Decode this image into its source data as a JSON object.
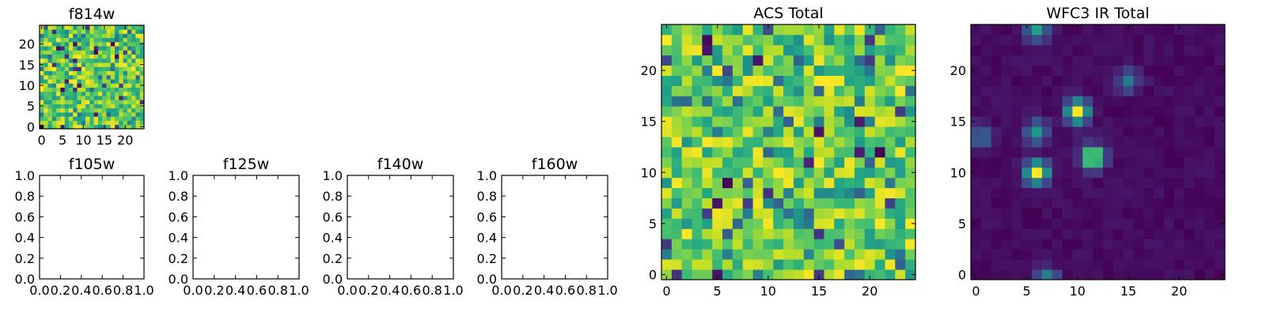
{
  "figure": {
    "panels": [
      {
        "id": "f814w",
        "title": "f814w",
        "type": "heatmap",
        "grid": [
          25,
          25
        ],
        "xticks": [
          "0",
          "5",
          "10",
          "15",
          "20"
        ],
        "yticks": [
          "0",
          "5",
          "10",
          "15",
          "20"
        ],
        "colormap": "viridis",
        "note_values": "random-looking noise field; most pixels mid-to-high (green/yellow) with scattered low (purple) pixels"
      },
      {
        "id": "f105w",
        "title": "f105w",
        "type": "empty",
        "xticks": [
          "0.0",
          "0.2",
          "0.4",
          "0.6",
          "0.8",
          "1.0"
        ],
        "yticks": [
          "0.0",
          "0.2",
          "0.4",
          "0.6",
          "0.8",
          "1.0"
        ]
      },
      {
        "id": "f125w",
        "title": "f125w",
        "type": "empty",
        "xticks": [
          "0.0",
          "0.2",
          "0.4",
          "0.6",
          "0.8",
          "1.0"
        ],
        "yticks": [
          "0.0",
          "0.2",
          "0.4",
          "0.6",
          "0.8",
          "1.0"
        ]
      },
      {
        "id": "f140w",
        "title": "f140w",
        "type": "empty",
        "xticks": [
          "0.0",
          "0.2",
          "0.4",
          "0.6",
          "0.8",
          "1.0"
        ],
        "yticks": [
          "0.0",
          "0.2",
          "0.4",
          "0.6",
          "0.8",
          "1.0"
        ]
      },
      {
        "id": "f160w",
        "title": "f160w",
        "type": "empty",
        "xticks": [
          "0.0",
          "0.2",
          "0.4",
          "0.6",
          "0.8",
          "1.0"
        ],
        "yticks": [
          "0.0",
          "0.2",
          "0.4",
          "0.6",
          "0.8",
          "1.0"
        ]
      },
      {
        "id": "acs-total",
        "title": "ACS Total",
        "type": "heatmap",
        "grid": [
          25,
          25
        ],
        "xticks": [
          "0",
          "5",
          "10",
          "15",
          "20"
        ],
        "yticks": [
          "0",
          "5",
          "10",
          "15",
          "20"
        ],
        "colormap": "viridis"
      },
      {
        "id": "wfc3-ir-total",
        "title": "WFC3 IR Total",
        "type": "heatmap",
        "grid": [
          25,
          25
        ],
        "xticks": [
          "0",
          "5",
          "10",
          "15",
          "20"
        ],
        "yticks": [
          "0",
          "5",
          "10",
          "15",
          "20"
        ],
        "colormap": "viridis",
        "sources": [
          {
            "x": 6.5,
            "y": 24.5,
            "peak": 0.55
          },
          {
            "x": 10.5,
            "y": 16.5,
            "peak": 1.0
          },
          {
            "x": 15.5,
            "y": 19.5,
            "peak": 0.35
          },
          {
            "x": 6.5,
            "y": 10.5,
            "peak": 1.0
          },
          {
            "x": 6.5,
            "y": 14.5,
            "peak": 0.5
          },
          {
            "x": 12.0,
            "y": 12.0,
            "peak": 0.95
          },
          {
            "x": 1.0,
            "y": 14.0,
            "peak": 0.35
          },
          {
            "x": 7.5,
            "y": 0.0,
            "peak": 0.5
          }
        ]
      }
    ]
  },
  "chart_data": [
    {
      "type": "heatmap",
      "title": "f814w",
      "x_range": [
        -0.5,
        24.5
      ],
      "y_range": [
        -0.5,
        24.5
      ],
      "grid": [
        25,
        25
      ],
      "colormap": "viridis",
      "xticks": [
        0,
        5,
        10,
        15,
        20
      ],
      "yticks": [
        0,
        5,
        10,
        15,
        20
      ]
    },
    {
      "type": "heatmap",
      "title": "f105w",
      "x_range": [
        0.0,
        1.0
      ],
      "y_range": [
        0.0,
        1.0
      ],
      "values": []
    },
    {
      "type": "heatmap",
      "title": "f125w",
      "x_range": [
        0.0,
        1.0
      ],
      "y_range": [
        0.0,
        1.0
      ],
      "values": []
    },
    {
      "type": "heatmap",
      "title": "f140w",
      "x_range": [
        0.0,
        1.0
      ],
      "y_range": [
        0.0,
        1.0
      ],
      "values": []
    },
    {
      "type": "heatmap",
      "title": "f160w",
      "x_range": [
        0.0,
        1.0
      ],
      "y_range": [
        0.0,
        1.0
      ],
      "values": []
    },
    {
      "type": "heatmap",
      "title": "ACS Total",
      "x_range": [
        -0.5,
        24.5
      ],
      "y_range": [
        -0.5,
        24.5
      ],
      "grid": [
        25,
        25
      ],
      "colormap": "viridis"
    },
    {
      "type": "heatmap",
      "title": "WFC3 IR Total",
      "x_range": [
        -0.5,
        24.5
      ],
      "y_range": [
        -0.5,
        24.5
      ],
      "grid": [
        25,
        25
      ],
      "colormap": "viridis"
    }
  ]
}
